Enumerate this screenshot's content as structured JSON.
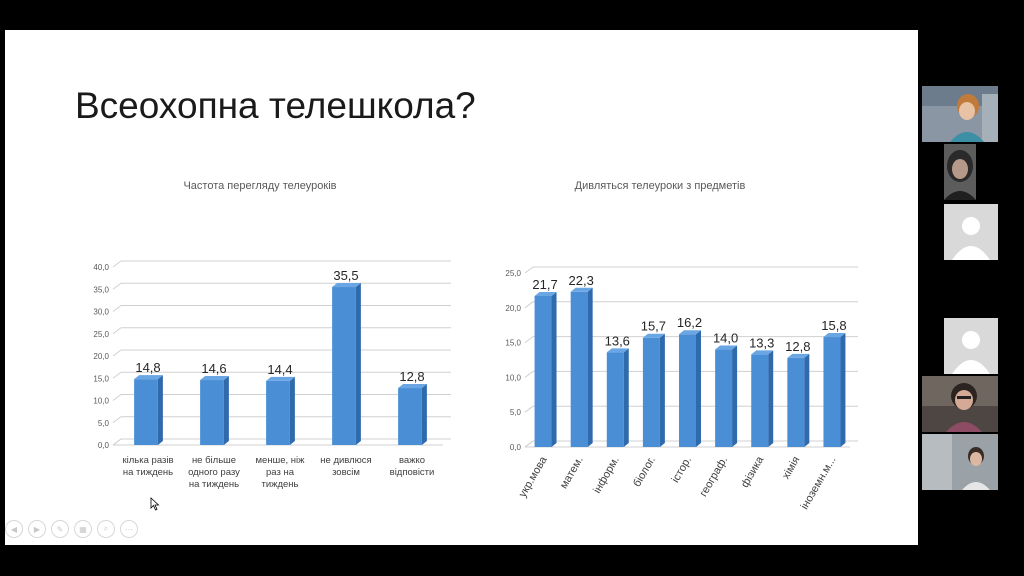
{
  "slide": {
    "title": "Всеохопна телешкола?"
  },
  "chart_data": [
    {
      "type": "bar",
      "title": "Частота перегляду телеуроків",
      "categories": [
        [
          "кілька разів",
          "на тиждень"
        ],
        [
          "не більше",
          "одного разу",
          "на тиждень"
        ],
        [
          "менше, ніж",
          "раз на",
          "тиждень"
        ],
        [
          "не дивлюся",
          "зовсім"
        ],
        [
          "важко",
          "відповісти"
        ]
      ],
      "values": [
        14.8,
        14.6,
        14.4,
        35.5,
        12.8
      ],
      "value_labels": [
        "14,8",
        "14,6",
        "14,4",
        "35,5",
        "12,8"
      ],
      "ylim": [
        0,
        40
      ],
      "yticks": [
        "0,0",
        "5,0",
        "10,0",
        "15,0",
        "20,0",
        "25,0",
        "30,0",
        "35,0",
        "40,0"
      ],
      "grid": true,
      "color": "#4a8fd6"
    },
    {
      "type": "bar",
      "title": "Дивляться телеуроки з предметів",
      "categories": [
        "укр.мова",
        "матем.",
        "інформ.",
        "біолог.",
        "істор.",
        "географ.",
        "фізика",
        "хімія",
        "іноземн.м..."
      ],
      "values": [
        21.7,
        22.3,
        13.6,
        15.7,
        16.2,
        14.0,
        13.3,
        12.8,
        15.8
      ],
      "value_labels": [
        "21,7",
        "22,3",
        "13,6",
        "15,7",
        "16,2",
        "14,0",
        "13,3",
        "12,8",
        "15,8"
      ],
      "ylim": [
        0,
        25
      ],
      "yticks": [
        "0,0",
        "5,0",
        "10,0",
        "15,0",
        "20,0",
        "25,0"
      ],
      "grid": true,
      "color": "#4a8fd6"
    }
  ],
  "toolbar": {
    "buttons": [
      {
        "name": "prev-slide-button",
        "glyph": "◀"
      },
      {
        "name": "next-slide-button",
        "glyph": "▶"
      },
      {
        "name": "pen-tool-button",
        "glyph": "✎"
      },
      {
        "name": "slides-overview-button",
        "glyph": "▦"
      },
      {
        "name": "zoom-button",
        "glyph": "⌕"
      },
      {
        "name": "more-options-button",
        "glyph": "⋯"
      }
    ]
  },
  "participants": [
    {
      "name": "participant-video-1",
      "kind": "video"
    },
    {
      "name": "participant-video-2",
      "kind": "video"
    },
    {
      "name": "participant-placeholder-3",
      "kind": "placeholder"
    },
    {
      "name": "participant-placeholder-4",
      "kind": "placeholder"
    },
    {
      "name": "participant-video-5",
      "kind": "video"
    },
    {
      "name": "participant-video-6",
      "kind": "video"
    }
  ]
}
